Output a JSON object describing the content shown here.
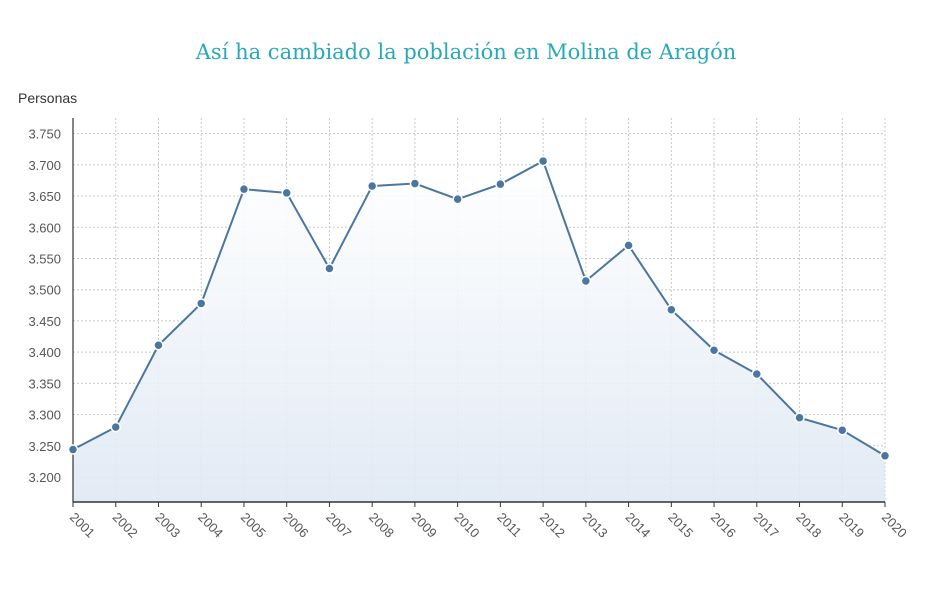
{
  "chart_data": {
    "type": "line",
    "title": "Así ha cambiado la población en Molina de Aragón",
    "ylabel": "Personas",
    "xlabel": "",
    "x": [
      "2001",
      "2002",
      "2003",
      "2004",
      "2005",
      "2006",
      "2007",
      "2008",
      "2009",
      "2010",
      "2011",
      "2012",
      "2013",
      "2014",
      "2015",
      "2016",
      "2017",
      "2018",
      "2019",
      "2020"
    ],
    "values": [
      3244,
      3280,
      3411,
      3478,
      3661,
      3655,
      3534,
      3666,
      3670,
      3645,
      3669,
      3706,
      3514,
      3571,
      3468,
      3403,
      3365,
      3295,
      3275,
      3234
    ],
    "yticks": [
      "3.200",
      "3.250",
      "3.300",
      "3.350",
      "3.400",
      "3.450",
      "3.500",
      "3.550",
      "3.600",
      "3.650",
      "3.700",
      "3.750"
    ],
    "ylim": [
      3160,
      3775
    ],
    "grid": true,
    "area_fill": true,
    "line_color": "#4a76a0",
    "title_color": "#27a9b8"
  }
}
